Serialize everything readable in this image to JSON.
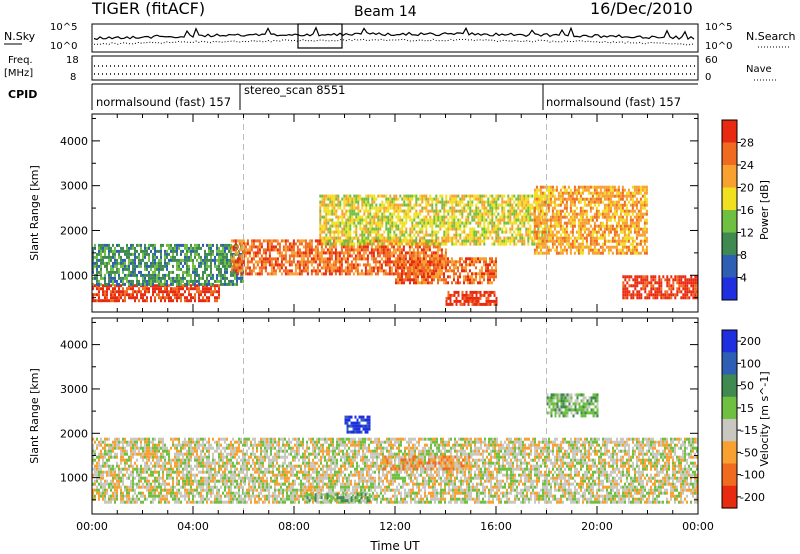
{
  "header": {
    "radar": "TIGER (fitACF)",
    "beam": "Beam 14",
    "date": "16/Dec/2010"
  },
  "noise_panel": {
    "left_label": "N.Sky",
    "right_label": "N.Search",
    "left_ticks": [
      "10^5",
      "10^0"
    ],
    "right_ticks": [
      "10^5",
      "10^0"
    ]
  },
  "freq_panel": {
    "left_label_1": "Freq.",
    "left_label_2": "[MHz]",
    "right_label": "Nave",
    "left_ticks": [
      "18",
      "8"
    ],
    "right_ticks": [
      "60",
      "0"
    ]
  },
  "cpid_panel": {
    "label": "CPID",
    "modes": [
      "normalsound (fast) 157",
      "stereo_scan 8551",
      "normalsound (fast) 157"
    ]
  },
  "chart_data": [
    {
      "type": "heatmap",
      "quantity": "Power",
      "ylabel": "Slant Range [km]",
      "yticks": [
        1000,
        2000,
        3000,
        4000
      ],
      "ylim": [
        180,
        4600
      ],
      "xlabel": "Time UT",
      "xticks": [
        "00:00",
        "04:00",
        "08:00",
        "12:00",
        "16:00",
        "20:00",
        "00:00"
      ],
      "xlim_hours": [
        0,
        24
      ],
      "colorbar_label": "Power [dB]",
      "colorbar_ticks": [
        "4",
        "8",
        "12",
        "16",
        "20",
        "24",
        "28"
      ],
      "colorbar_colors": [
        "#1f2fe0",
        "#2f5fb5",
        "#3f8a50",
        "#6fc040",
        "#f0e020",
        "#f8a030",
        "#f06a20",
        "#e82a10"
      ],
      "mode_boundaries_hours": [
        6,
        18
      ],
      "echo_bands": [
        {
          "t0": 0.0,
          "t1": 5.0,
          "r0": 450,
          "r1": 800,
          "level": 7
        },
        {
          "t0": 0.0,
          "t1": 6.0,
          "r0": 800,
          "r1": 1700,
          "level": 2
        },
        {
          "t0": 5.5,
          "t1": 14.0,
          "r0": 1000,
          "r1": 1800,
          "level": 6
        },
        {
          "t0": 12.0,
          "t1": 16.0,
          "r0": 800,
          "r1": 1400,
          "level": 6
        },
        {
          "t0": 9.0,
          "t1": 18.0,
          "r0": 1700,
          "r1": 2800,
          "level": 4
        },
        {
          "t0": 14.0,
          "t1": 16.0,
          "r0": 350,
          "r1": 650,
          "level": 7
        },
        {
          "t0": 17.5,
          "t1": 22.0,
          "r0": 1500,
          "r1": 3000,
          "level": 5
        },
        {
          "t0": 21.0,
          "t1": 24.0,
          "r0": 500,
          "r1": 1000,
          "level": 7
        }
      ]
    },
    {
      "type": "heatmap",
      "quantity": "Velocity",
      "ylabel": "Slant Range [km]",
      "yticks": [
        1000,
        2000,
        3000,
        4000
      ],
      "ylim": [
        180,
        4600
      ],
      "xlabel": "Time UT",
      "xticks": [
        "00:00",
        "04:00",
        "08:00",
        "12:00",
        "16:00",
        "20:00",
        "00:00"
      ],
      "xlim_hours": [
        0,
        24
      ],
      "colorbar_label": "Velocity [m s^-1]",
      "colorbar_ticks": [
        "200",
        "100",
        "50",
        "15",
        "-15",
        "-50",
        "-100",
        "-200"
      ],
      "colorbar_colors": [
        "#1f2fe0",
        "#2f5fb5",
        "#3f8a50",
        "#6fc040",
        "#c8c8c0",
        "#f8a030",
        "#f06a20",
        "#e82a10"
      ],
      "mode_boundaries_hours": [
        6,
        18
      ],
      "echo_bands": [
        {
          "t0": 0.0,
          "t1": 24.0,
          "r0": 450,
          "r1": 1900,
          "level": 4
        },
        {
          "t0": 8.5,
          "t1": 11.0,
          "r0": 450,
          "r1": 650,
          "level": 3
        },
        {
          "t0": 10.0,
          "t1": 11.0,
          "r0": 2000,
          "r1": 2400,
          "level": 0
        },
        {
          "t0": 11.5,
          "t1": 15.0,
          "r0": 1200,
          "r1": 1500,
          "level": 5
        },
        {
          "t0": 18.0,
          "t1": 20.0,
          "r0": 2400,
          "r1": 2900,
          "level": 3
        }
      ]
    }
  ]
}
